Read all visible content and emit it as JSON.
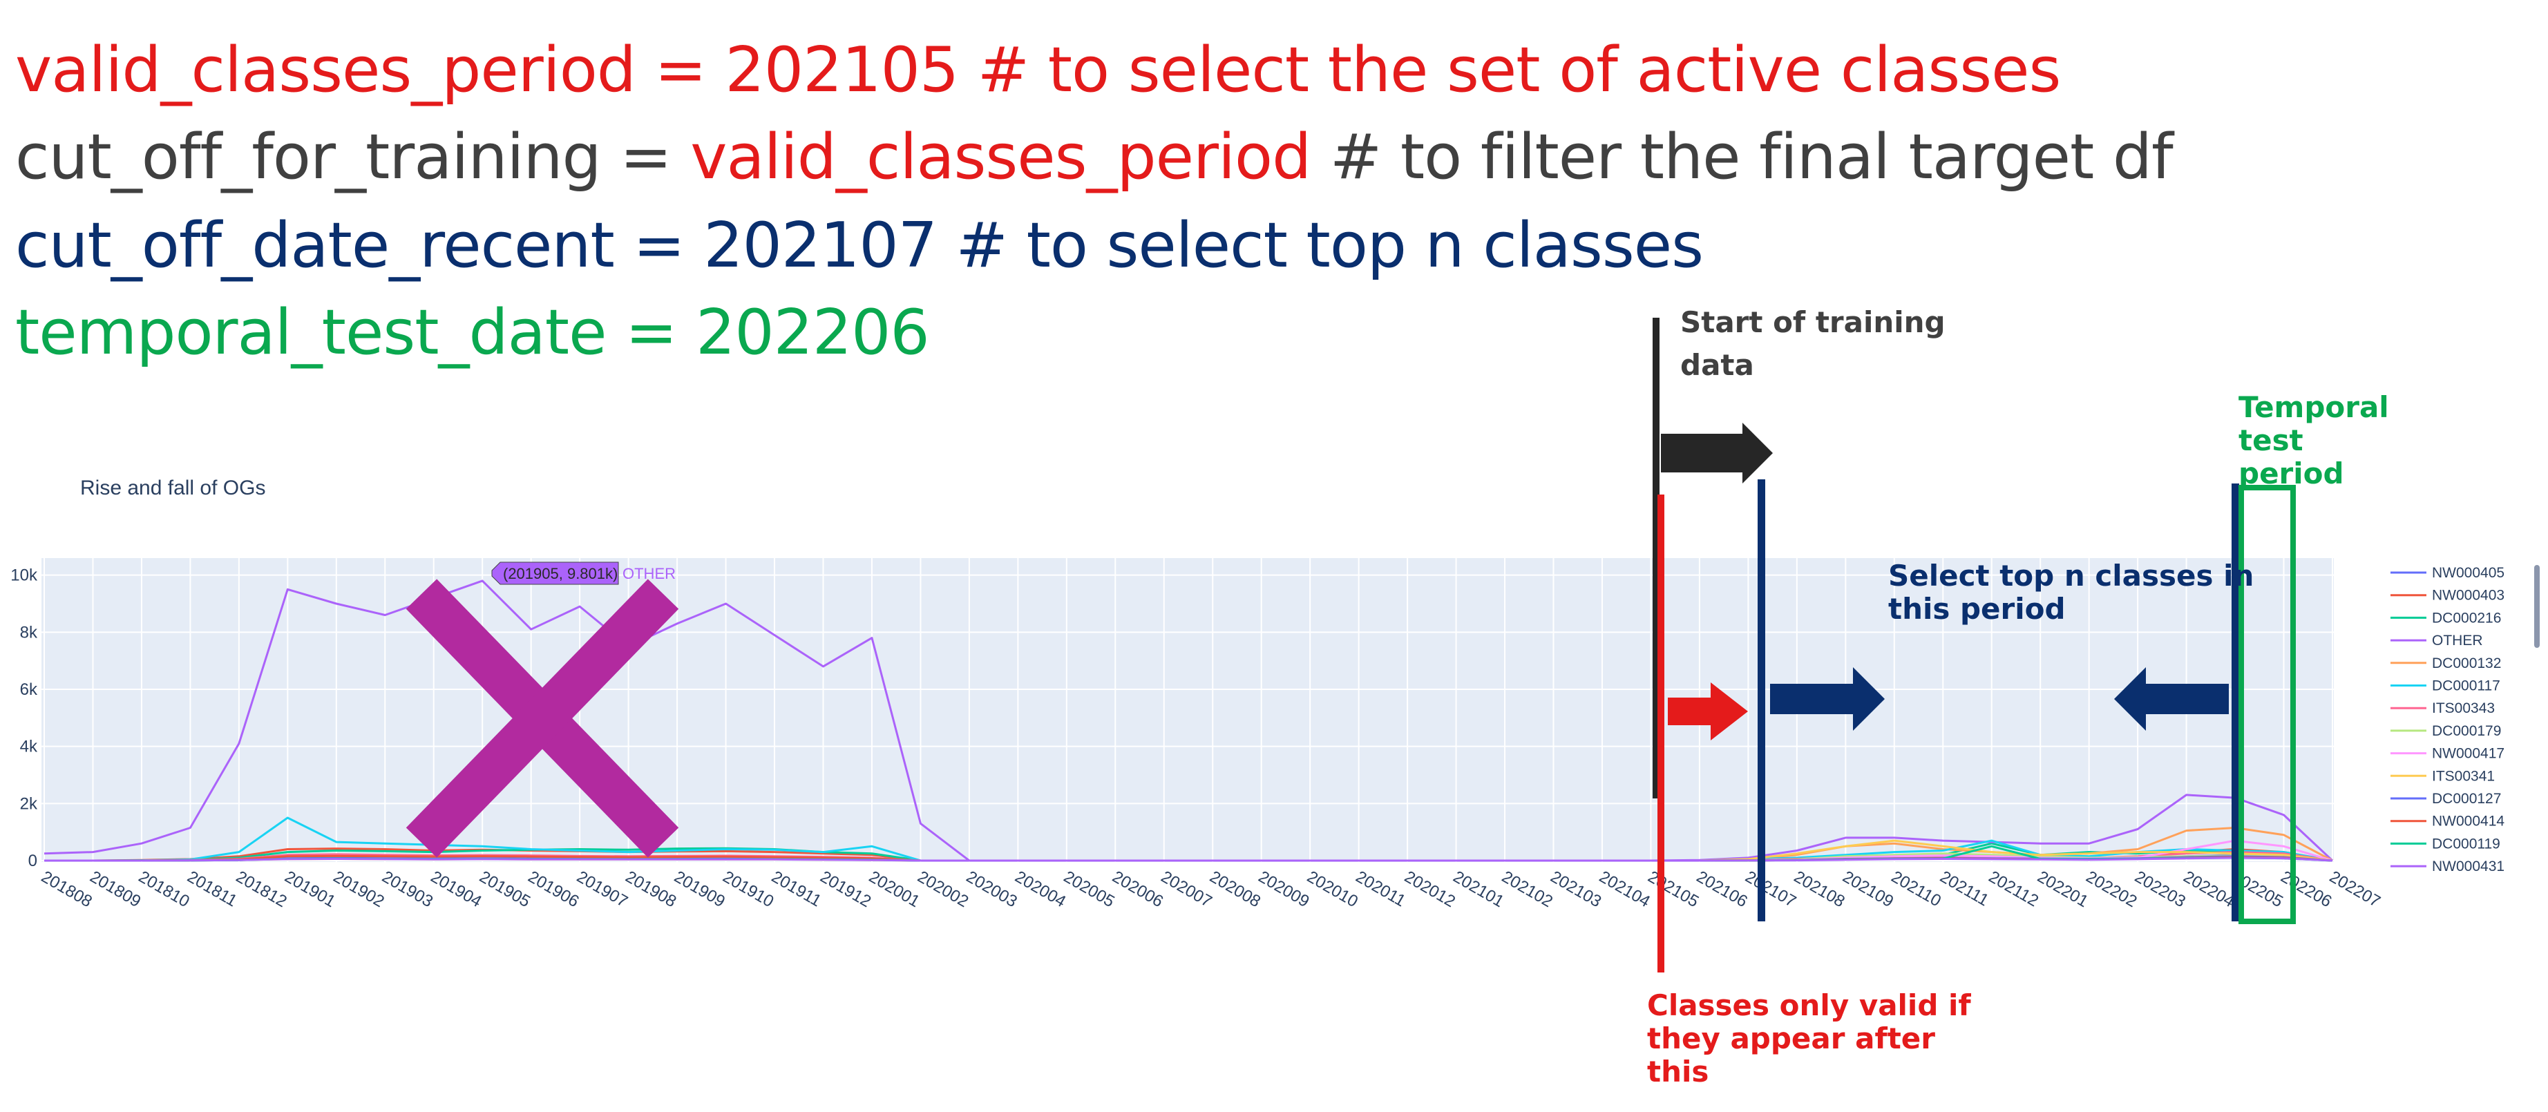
{
  "code": {
    "line1": {
      "text": "valid_classes_period = 202105 # to select the set of active classes"
    },
    "line2": {
      "prefix": "cut_off_for_training = ",
      "highlight": "valid_classes_period",
      "suffix": " # to filter the final target df"
    },
    "line3": {
      "text": "cut_off_date_recent = 202107 # to select top n classes"
    },
    "line4": {
      "text": "temporal_test_date = 202206"
    }
  },
  "annotations": {
    "start_training": "Start of training data",
    "temporal_test": "Temporal test period",
    "select_top_n": "Select top n classes in this period",
    "valid_after": "Classes only valid if they appear after this"
  },
  "colors": {
    "red": "#e41b1b",
    "grey": "#404040",
    "navy": "#0a2f6e",
    "green": "#0aa84f",
    "cross": "#b22a9f",
    "plot_bg": "#e5ecf6"
  },
  "hover_label": {
    "point": "(201905, 9.801k)",
    "series": "OTHER"
  },
  "chart_data": {
    "type": "line",
    "title": "Rise and fall of OGs",
    "xlabel": "",
    "ylabel": "",
    "ylim": [
      0,
      10500
    ],
    "grid": true,
    "legend_placement": "right",
    "y_ticks": [
      0,
      2000,
      4000,
      6000,
      8000,
      10000
    ],
    "y_tick_labels": [
      "0",
      "2k",
      "4k",
      "6k",
      "8k",
      "10k"
    ],
    "categories": [
      "201808",
      "201809",
      "201810",
      "201811",
      "201812",
      "201901",
      "201902",
      "201903",
      "201904",
      "201905",
      "201906",
      "201907",
      "201908",
      "201909",
      "201910",
      "201911",
      "201912",
      "202001",
      "202002",
      "202003",
      "202004",
      "202005",
      "202006",
      "202007",
      "202008",
      "202009",
      "202010",
      "202011",
      "202012",
      "202101",
      "202102",
      "202103",
      "202104",
      "202105",
      "202106",
      "202107",
      "202108",
      "202109",
      "202110",
      "202111",
      "202112",
      "202201",
      "202202",
      "202203",
      "202204",
      "202205",
      "202206",
      "202207"
    ],
    "series": [
      {
        "name": "NW000405",
        "color": "#636efa",
        "values": [
          0,
          0,
          0,
          20,
          40,
          100,
          120,
          120,
          110,
          100,
          100,
          90,
          90,
          100,
          100,
          90,
          80,
          60,
          0,
          0,
          0,
          0,
          0,
          0,
          0,
          0,
          0,
          0,
          0,
          0,
          0,
          0,
          0,
          0,
          0,
          20,
          40,
          100,
          150,
          160,
          120,
          80,
          60,
          80,
          150,
          200,
          150,
          0
        ]
      },
      {
        "name": "NW000403",
        "color": "#ef553b",
        "values": [
          0,
          0,
          20,
          50,
          150,
          400,
          420,
          400,
          350,
          380,
          350,
          330,
          300,
          320,
          330,
          300,
          250,
          200,
          0,
          0,
          0,
          0,
          0,
          0,
          0,
          0,
          0,
          0,
          0,
          0,
          0,
          0,
          0,
          0,
          0,
          10,
          30,
          80,
          120,
          130,
          100,
          80,
          60,
          100,
          300,
          400,
          300,
          0
        ]
      },
      {
        "name": "DC000216",
        "color": "#00cc96",
        "values": [
          0,
          0,
          10,
          30,
          100,
          300,
          350,
          330,
          300,
          350,
          380,
          400,
          380,
          420,
          430,
          400,
          300,
          250,
          0,
          0,
          0,
          0,
          0,
          0,
          0,
          0,
          0,
          0,
          0,
          0,
          0,
          0,
          0,
          0,
          0,
          20,
          50,
          120,
          150,
          200,
          600,
          200,
          300,
          250,
          350,
          300,
          250,
          0
        ]
      },
      {
        "name": "OTHER",
        "color": "#ab63fa",
        "values": [
          250,
          300,
          600,
          1150,
          4100,
          9500,
          9000,
          8600,
          9200,
          9801,
          8100,
          8900,
          7500,
          8300,
          9000,
          7900,
          6800,
          7800,
          1300,
          0,
          0,
          0,
          0,
          0,
          0,
          0,
          0,
          0,
          0,
          0,
          0,
          0,
          0,
          0,
          20,
          100,
          350,
          800,
          800,
          700,
          650,
          600,
          600,
          1100,
          2300,
          2200,
          1600,
          0
        ]
      },
      {
        "name": "DC000132",
        "color": "#ffa15a",
        "values": [
          0,
          0,
          0,
          10,
          30,
          100,
          120,
          100,
          90,
          100,
          90,
          80,
          80,
          90,
          90,
          80,
          70,
          50,
          0,
          0,
          0,
          0,
          0,
          0,
          0,
          0,
          0,
          0,
          0,
          0,
          0,
          0,
          0,
          0,
          0,
          50,
          200,
          500,
          600,
          400,
          300,
          200,
          250,
          400,
          1050,
          1150,
          900,
          0
        ]
      },
      {
        "name": "DC000117",
        "color": "#19d3f3",
        "values": [
          0,
          0,
          0,
          40,
          300,
          1500,
          650,
          600,
          550,
          500,
          400,
          350,
          300,
          350,
          400,
          380,
          300,
          500,
          0,
          0,
          0,
          0,
          0,
          0,
          0,
          0,
          0,
          0,
          0,
          0,
          0,
          0,
          0,
          0,
          0,
          50,
          100,
          200,
          300,
          350,
          700,
          200,
          150,
          300,
          400,
          350,
          300,
          0
        ]
      },
      {
        "name": "ITS00343",
        "color": "#ff6692",
        "values": [
          0,
          0,
          0,
          20,
          60,
          200,
          220,
          200,
          180,
          190,
          180,
          160,
          150,
          160,
          170,
          150,
          130,
          100,
          0,
          0,
          0,
          0,
          0,
          0,
          0,
          0,
          0,
          0,
          0,
          0,
          0,
          0,
          0,
          0,
          0,
          20,
          60,
          120,
          150,
          140,
          120,
          100,
          90,
          150,
          250,
          300,
          250,
          0
        ]
      },
      {
        "name": "DC000179",
        "color": "#b6e880",
        "values": [
          0,
          0,
          0,
          10,
          30,
          80,
          90,
          80,
          70,
          80,
          70,
          60,
          60,
          70,
          70,
          60,
          50,
          40,
          0,
          0,
          0,
          0,
          0,
          0,
          0,
          0,
          0,
          0,
          0,
          0,
          0,
          0,
          0,
          0,
          0,
          10,
          40,
          150,
          200,
          250,
          200,
          150,
          100,
          120,
          150,
          180,
          150,
          0
        ]
      },
      {
        "name": "NW000417",
        "color": "#ff97ff",
        "values": [
          0,
          0,
          0,
          10,
          30,
          100,
          110,
          100,
          90,
          100,
          90,
          80,
          80,
          90,
          90,
          80,
          70,
          50,
          0,
          0,
          0,
          0,
          0,
          0,
          0,
          0,
          0,
          0,
          0,
          0,
          0,
          0,
          0,
          0,
          0,
          10,
          30,
          100,
          150,
          180,
          150,
          100,
          80,
          100,
          400,
          700,
          500,
          0
        ]
      },
      {
        "name": "ITS00341",
        "color": "#fecb52",
        "values": [
          0,
          0,
          0,
          5,
          20,
          50,
          60,
          50,
          40,
          50,
          40,
          40,
          40,
          40,
          40,
          40,
          30,
          20,
          0,
          0,
          0,
          0,
          0,
          0,
          0,
          0,
          0,
          0,
          0,
          0,
          0,
          0,
          0,
          0,
          0,
          50,
          250,
          500,
          700,
          500,
          300,
          200,
          250,
          300,
          300,
          250,
          200,
          0
        ]
      },
      {
        "name": "DC000127",
        "color": "#636efa",
        "values": [
          0,
          0,
          0,
          5,
          20,
          80,
          90,
          80,
          70,
          80,
          70,
          60,
          60,
          70,
          70,
          60,
          50,
          40,
          0,
          0,
          0,
          0,
          0,
          0,
          0,
          0,
          0,
          0,
          0,
          0,
          0,
          0,
          0,
          0,
          0,
          5,
          20,
          60,
          80,
          90,
          80,
          70,
          60,
          80,
          120,
          150,
          120,
          0
        ]
      },
      {
        "name": "NW000414",
        "color": "#ef553b",
        "values": [
          0,
          0,
          0,
          10,
          40,
          150,
          160,
          150,
          140,
          150,
          140,
          130,
          120,
          130,
          140,
          120,
          100,
          80,
          0,
          0,
          0,
          0,
          0,
          0,
          0,
          0,
          0,
          0,
          0,
          0,
          0,
          0,
          0,
          0,
          0,
          5,
          20,
          50,
          70,
          80,
          60,
          50,
          40,
          60,
          100,
          120,
          100,
          0
        ]
      },
      {
        "name": "DC000119",
        "color": "#00cc96",
        "values": [
          0,
          0,
          0,
          5,
          20,
          60,
          70,
          60,
          50,
          60,
          50,
          50,
          50,
          50,
          50,
          50,
          40,
          30,
          0,
          0,
          0,
          0,
          0,
          0,
          0,
          0,
          0,
          0,
          0,
          0,
          0,
          0,
          0,
          0,
          0,
          5,
          20,
          40,
          60,
          70,
          500,
          60,
          50,
          60,
          90,
          100,
          80,
          0
        ]
      },
      {
        "name": "NW000431",
        "color": "#ab63fa",
        "values": [
          0,
          0,
          0,
          5,
          20,
          50,
          60,
          50,
          40,
          50,
          40,
          40,
          40,
          40,
          40,
          40,
          30,
          20,
          0,
          0,
          0,
          0,
          0,
          0,
          0,
          0,
          0,
          0,
          0,
          0,
          0,
          0,
          0,
          0,
          0,
          5,
          10,
          30,
          50,
          60,
          50,
          40,
          30,
          50,
          80,
          100,
          80,
          0
        ]
      }
    ]
  }
}
